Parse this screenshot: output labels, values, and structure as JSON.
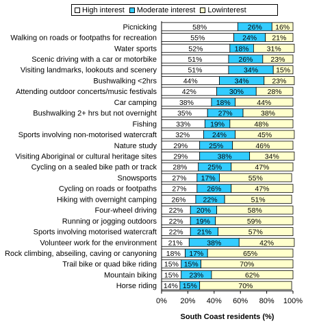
{
  "colors": {
    "high": "#ffffff",
    "moderate": "#33ccff",
    "low": "#ffffcc"
  },
  "legend": {
    "high": "High interest",
    "moderate": "Moderate interest",
    "low": "Lowinterest"
  },
  "chart_data": {
    "type": "bar",
    "orientation": "horizontal",
    "stacked": true,
    "xlabel": "South Coast residents (%)",
    "xlim": [
      0,
      100
    ],
    "xticks": [
      "0%",
      "20%",
      "40%",
      "60%",
      "80%",
      "100%"
    ],
    "grid": false,
    "legend_position": "top",
    "categories": [
      "Picnicking",
      "Walking on roads or footpaths for recreation",
      "Water sports",
      "Scenic driving with a car or motorbike",
      "Visiting landmarks, lookouts and scenery",
      "Bushwalking <2hrs",
      "Attending outdoor concerts/music festivals",
      "Car camping",
      "Bushwalking 2+ hrs but not overnight",
      "Fishing",
      "Sports involving non-motorised watercraft",
      "Nature study",
      "Visiting Aboriginal or cultural heritage sites",
      "Cycling on a sealed bike path or track",
      "Snowsports",
      "Cycling on roads or footpaths",
      "Hiking with overnight camping",
      "Four-wheel driving",
      "Running or jogging outdoors",
      "Sports involving motorised watercraft",
      "Volunteer work for the environment",
      "Rock climbing, abseiling, caving or canyoning",
      "Trail bike or quad bike riding",
      "Mountain biking",
      "Horse riding"
    ],
    "series": [
      {
        "name": "High interest",
        "colorKey": "high",
        "values": [
          58,
          55,
          52,
          51,
          51,
          44,
          42,
          38,
          35,
          33,
          32,
          29,
          29,
          28,
          27,
          27,
          26,
          22,
          22,
          22,
          21,
          18,
          15,
          15,
          14
        ]
      },
      {
        "name": "Moderate interest",
        "colorKey": "moderate",
        "values": [
          26,
          24,
          18,
          26,
          34,
          34,
          30,
          18,
          27,
          19,
          24,
          25,
          38,
          25,
          17,
          26,
          22,
          20,
          19,
          21,
          38,
          17,
          15,
          23,
          15
        ]
      },
      {
        "name": "Lowinterest",
        "colorKey": "low",
        "values": [
          16,
          21,
          31,
          23,
          15,
          23,
          28,
          44,
          38,
          48,
          45,
          46,
          34,
          47,
          55,
          47,
          51,
          58,
          59,
          57,
          42,
          65,
          70,
          62,
          70
        ]
      }
    ]
  }
}
